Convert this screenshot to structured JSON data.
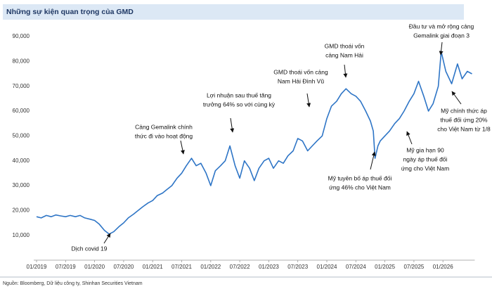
{
  "chart_data": {
    "type": "line",
    "title": "Những sự kiện quan trọng của GMD",
    "color": "#2e75c6",
    "x": [
      2019.0,
      2019.08,
      2019.17,
      2019.25,
      2019.33,
      2019.42,
      2019.5,
      2019.58,
      2019.67,
      2019.75,
      2019.83,
      2019.92,
      2020.0,
      2020.08,
      2020.17,
      2020.25,
      2020.33,
      2020.42,
      2020.5,
      2020.58,
      2020.67,
      2020.75,
      2020.83,
      2020.92,
      2021.0,
      2021.08,
      2021.17,
      2021.25,
      2021.33,
      2021.42,
      2021.5,
      2021.58,
      2021.67,
      2021.75,
      2021.83,
      2021.92,
      2022.0,
      2022.08,
      2022.17,
      2022.25,
      2022.33,
      2022.42,
      2022.5,
      2022.58,
      2022.67,
      2022.75,
      2022.83,
      2022.92,
      2023.0,
      2023.08,
      2023.17,
      2023.25,
      2023.33,
      2023.42,
      2023.5,
      2023.58,
      2023.67,
      2023.75,
      2023.83,
      2023.92,
      2024.0,
      2024.08,
      2024.17,
      2024.25,
      2024.33,
      2024.42,
      2024.5,
      2024.58,
      2024.67,
      2024.75,
      2024.8,
      2024.83,
      2024.88,
      2024.92,
      2025.0,
      2025.08,
      2025.17,
      2025.25,
      2025.33,
      2025.42,
      2025.5,
      2025.58,
      2025.67,
      2025.75,
      2025.83,
      2025.92,
      2025.97,
      2026.05,
      2026.15,
      2026.25,
      2026.33,
      2026.42,
      2026.5
    ],
    "values": [
      17500,
      17000,
      18000,
      17500,
      18200,
      17800,
      17500,
      18000,
      17500,
      18000,
      17000,
      16500,
      16000,
      14500,
      12000,
      10500,
      11500,
      13500,
      15000,
      17000,
      18500,
      20000,
      21500,
      23000,
      24000,
      26000,
      27000,
      28500,
      30000,
      33000,
      35000,
      38000,
      41000,
      38000,
      39000,
      35000,
      30000,
      36000,
      38000,
      40000,
      46000,
      38000,
      33000,
      40000,
      37000,
      32000,
      37000,
      40000,
      41000,
      37000,
      40000,
      39000,
      42000,
      44000,
      49000,
      48000,
      44000,
      46000,
      48000,
      50000,
      57000,
      62000,
      64000,
      67000,
      69000,
      67000,
      66000,
      64000,
      60000,
      56000,
      52000,
      41000,
      46000,
      48000,
      50000,
      52000,
      55000,
      57000,
      60000,
      64000,
      67000,
      72000,
      66000,
      60000,
      63000,
      70000,
      84000,
      76000,
      71000,
      79000,
      73000,
      76000,
      75000
    ],
    "xlim": [
      2019,
      2026.5
    ],
    "xticks": [
      {
        "value": 2019,
        "label": "01/2019"
      },
      {
        "value": 2019.5,
        "label": "07/2019"
      },
      {
        "value": 2020,
        "label": "01/2020"
      },
      {
        "value": 2020.5,
        "label": "07/2020"
      },
      {
        "value": 2021,
        "label": "01/2021"
      },
      {
        "value": 2021.5,
        "label": "07/2021"
      },
      {
        "value": 2022,
        "label": "01/2022"
      },
      {
        "value": 2022.5,
        "label": "07/2022"
      },
      {
        "value": 2023,
        "label": "01/2023"
      },
      {
        "value": 2023.5,
        "label": "07/2023"
      },
      {
        "value": 2024,
        "label": "01/2024"
      },
      {
        "value": 2024.5,
        "label": "07/2024"
      },
      {
        "value": 2025,
        "label": "01/2025"
      },
      {
        "value": 2025.5,
        "label": "07/2025"
      },
      {
        "value": 2026,
        "label": "01/2026"
      }
    ],
    "ylim": [
      0,
      90000
    ],
    "yticks": [
      {
        "value": 10000,
        "label": "10,000"
      },
      {
        "value": 20000,
        "label": "20,000"
      },
      {
        "value": 30000,
        "label": "30,000"
      },
      {
        "value": 40000,
        "label": "40,000"
      },
      {
        "value": 50000,
        "label": "50,000"
      },
      {
        "value": 60000,
        "label": "60,000"
      },
      {
        "value": 70000,
        "label": "70,000"
      },
      {
        "value": 80000,
        "label": "80,000"
      },
      {
        "value": 90000,
        "label": "90,000"
      }
    ],
    "annotations": [
      {
        "lines": [
          "Dịch covid 19"
        ]
      },
      {
        "lines": [
          "Cảng Gemalink chính",
          "thức đi vào hoạt động"
        ]
      },
      {
        "lines": [
          "Lợi nhuận sau thuế tăng",
          "trưởng 64% so với cùng kỳ"
        ]
      },
      {
        "lines": [
          "GMD thoái vốn cảng",
          "Nam Hải Đình Vũ"
        ]
      },
      {
        "lines": [
          "GMD thoái vốn",
          "cảng Nam Hải"
        ]
      },
      {
        "lines": [
          "Đầu tư và mở rộng cảng",
          "Gemalink giai đoạn 3"
        ]
      },
      {
        "lines": [
          "Mỹ chính thức áp",
          "thuế đối ứng 20%",
          "cho Việt Nam từ 1/8"
        ]
      },
      {
        "lines": [
          "Mỹ tuyên bố áp thuế đối",
          "ứng 46% cho Việt Nam"
        ]
      },
      {
        "lines": [
          "Mỹ gia hạn 90",
          "ngày áp thuế đối",
          "ứng cho Việt Nam"
        ]
      }
    ],
    "source": "Nguồn: Bloomberg, Dữ liệu công ty, Shinhan Securities Vietnam"
  }
}
